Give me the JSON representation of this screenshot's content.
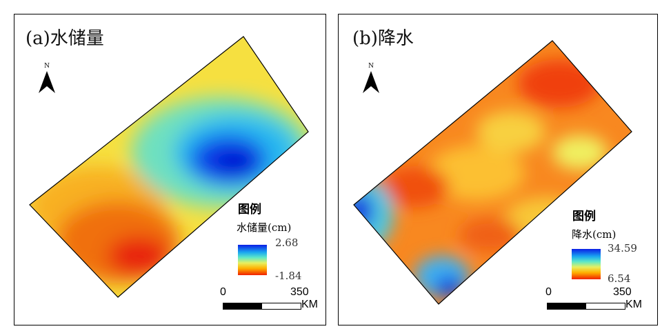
{
  "panels": [
    {
      "title": "(a)水储量",
      "legend_title": "图例",
      "legend_unit": "水储量(cm)",
      "max": "2.68",
      "min": "-1.84",
      "north": "N",
      "scale_start": "0",
      "scale_end": "350",
      "scale_unit": "KM"
    },
    {
      "title": "(b)降水",
      "legend_title": "图例",
      "legend_unit": "降水(cm)",
      "max": "34.59",
      "min": "6.54",
      "north": "N",
      "scale_start": "0",
      "scale_end": "350",
      "scale_unit": "KM"
    }
  ]
}
